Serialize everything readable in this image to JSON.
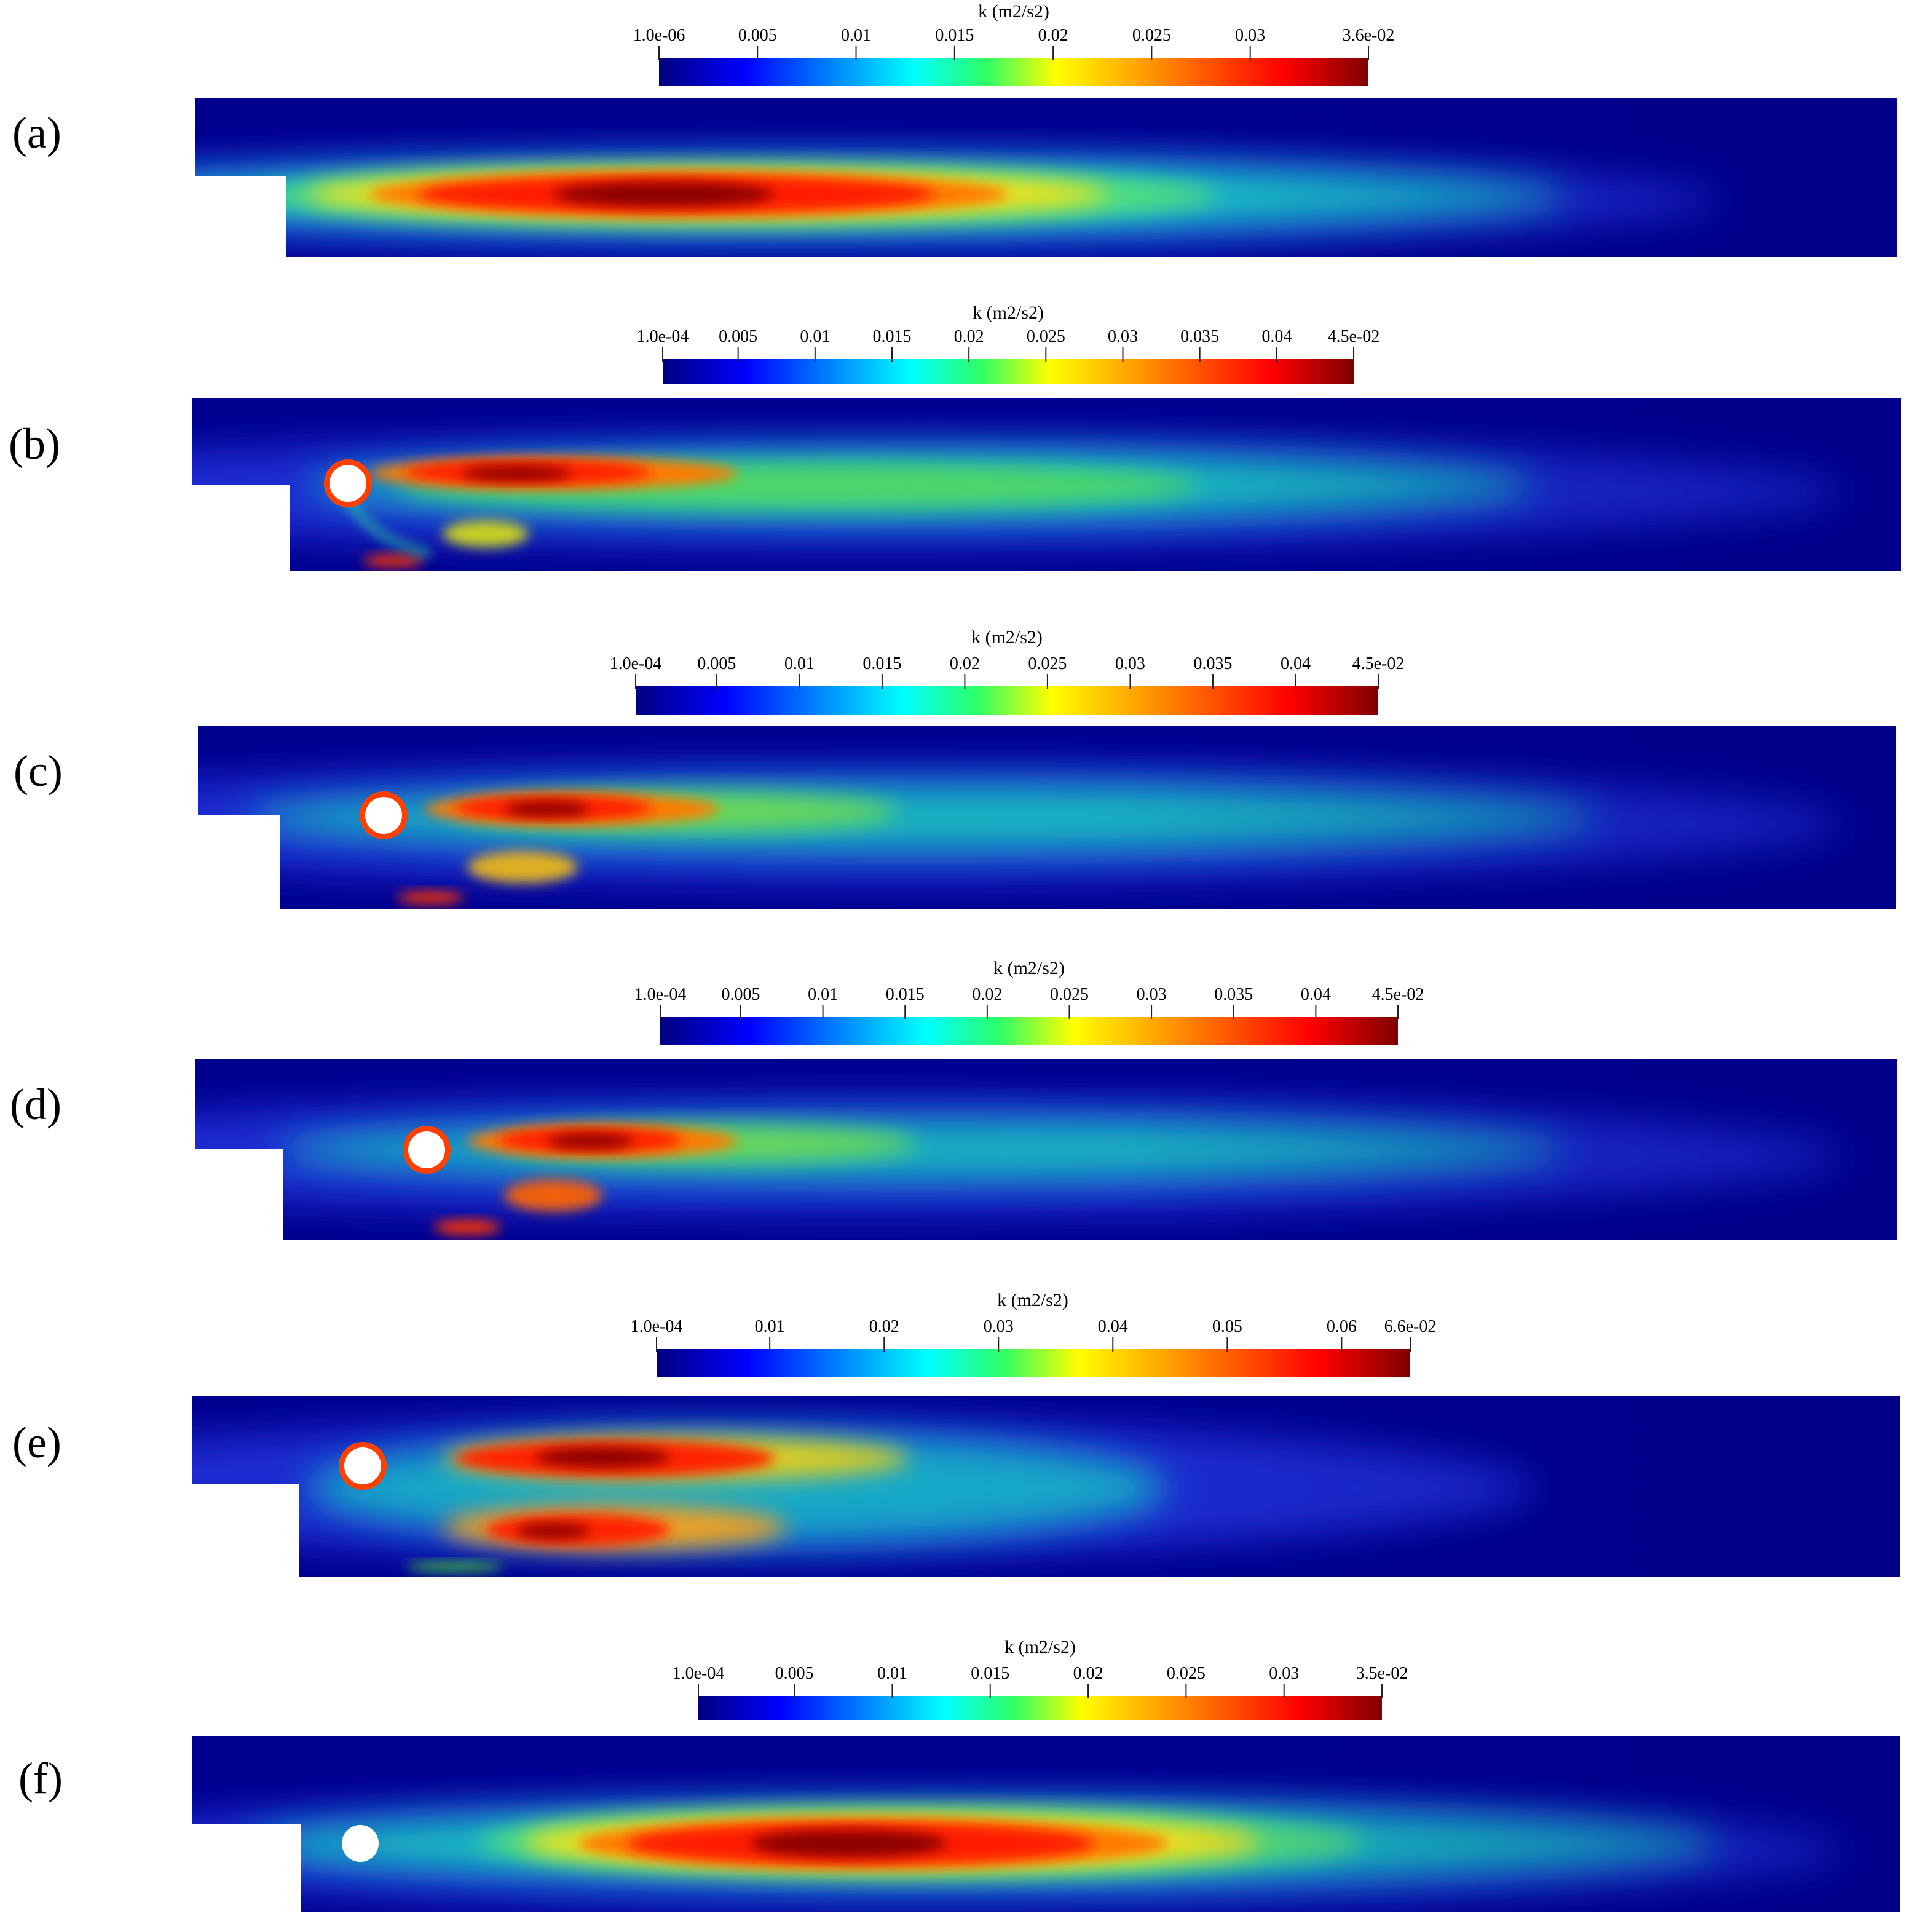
{
  "panels": [
    {
      "label": "(a)",
      "colorbar": {
        "title": "k (m2/s2)",
        "ticks": [
          "1.0e-06",
          "0.005",
          "0.01",
          "0.015",
          "0.02",
          "0.025",
          "0.03",
          "3.6e-02"
        ],
        "tick_values": [
          1e-06,
          0.005,
          0.01,
          0.015,
          0.02,
          0.025,
          0.03,
          0.036
        ],
        "range": [
          1e-06,
          0.036
        ]
      },
      "has_cylinder": false
    },
    {
      "label": "(b)",
      "colorbar": {
        "title": "k (m2/s2)",
        "ticks": [
          "1.0e-04",
          "0.005",
          "0.01",
          "0.015",
          "0.02",
          "0.025",
          "0.03",
          "0.035",
          "0.04",
          "4.5e-02"
        ],
        "tick_values": [
          0.0001,
          0.005,
          0.01,
          0.015,
          0.02,
          0.025,
          0.03,
          0.035,
          0.04,
          0.045
        ],
        "range": [
          0.0001,
          0.045
        ]
      },
      "has_cylinder": true
    },
    {
      "label": "(c)",
      "colorbar": {
        "title": "k (m2/s2)",
        "ticks": [
          "1.0e-04",
          "0.005",
          "0.01",
          "0.015",
          "0.02",
          "0.025",
          "0.03",
          "0.035",
          "0.04",
          "4.5e-02"
        ],
        "tick_values": [
          0.0001,
          0.005,
          0.01,
          0.015,
          0.02,
          0.025,
          0.03,
          0.035,
          0.04,
          0.045
        ],
        "range": [
          0.0001,
          0.045
        ]
      },
      "has_cylinder": true
    },
    {
      "label": "(d)",
      "colorbar": {
        "title": "k (m2/s2)",
        "ticks": [
          "1.0e-04",
          "0.005",
          "0.01",
          "0.015",
          "0.02",
          "0.025",
          "0.03",
          "0.035",
          "0.04",
          "4.5e-02"
        ],
        "tick_values": [
          0.0001,
          0.005,
          0.01,
          0.015,
          0.02,
          0.025,
          0.03,
          0.035,
          0.04,
          0.045
        ],
        "range": [
          0.0001,
          0.045
        ]
      },
      "has_cylinder": true
    },
    {
      "label": "(e)",
      "colorbar": {
        "title": "k (m2/s2)",
        "ticks": [
          "1.0e-04",
          "0.01",
          "0.02",
          "0.03",
          "0.04",
          "0.05",
          "0.06",
          "6.6e-02"
        ],
        "tick_values": [
          0.0001,
          0.01,
          0.02,
          0.03,
          0.04,
          0.05,
          0.06,
          0.066
        ],
        "range": [
          0.0001,
          0.066
        ]
      },
      "has_cylinder": true
    },
    {
      "label": "(f)",
      "colorbar": {
        "title": "k (m2/s2)",
        "ticks": [
          "1.0e-04",
          "0.005",
          "0.01",
          "0.015",
          "0.02",
          "0.025",
          "0.03",
          "3.5e-02"
        ],
        "tick_values": [
          0.0001,
          0.005,
          0.01,
          0.015,
          0.02,
          0.025,
          0.03,
          0.035
        ],
        "range": [
          0.0001,
          0.035
        ]
      },
      "has_cylinder": true
    }
  ],
  "colormap": [
    "#00007f",
    "#0000ff",
    "#00ffff",
    "#00ff7f",
    "#ffff00",
    "#ff7f00",
    "#ff0000",
    "#7f0000"
  ]
}
